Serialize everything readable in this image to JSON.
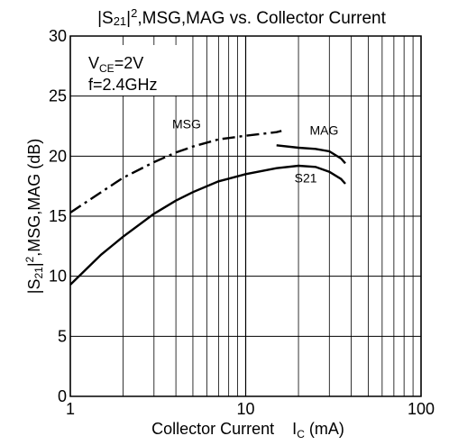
{
  "chart_data": {
    "type": "line",
    "title": [
      "|S",
      "21",
      "|",
      "2",
      ",MSG,MAG vs. Collector Current"
    ],
    "x_label": [
      "Collector Current",
      "I",
      "C",
      " (mA)"
    ],
    "y_label": [
      "|S",
      "21",
      "|",
      "2",
      ",MSG,MAG (dB)"
    ],
    "annotations": [
      [
        "V",
        "CE",
        "=2V"
      ],
      [
        "f=2.4GHz"
      ]
    ],
    "log_x": true,
    "grid": true,
    "xlim": [
      1,
      100
    ],
    "xticks": [
      1,
      10,
      100
    ],
    "ylim": [
      0,
      30
    ],
    "yticks": [
      0,
      5,
      10,
      15,
      20,
      25,
      30
    ],
    "series": [
      {
        "name": "S21",
        "color": "#000000",
        "dash": "solid",
        "x": [
          1,
          1.5,
          2,
          3,
          4,
          5,
          7,
          10,
          15,
          20,
          25,
          30,
          35,
          37
        ],
        "values": [
          9.3,
          11.8,
          13.3,
          15.2,
          16.3,
          17.0,
          17.9,
          18.5,
          19.0,
          19.2,
          19.1,
          18.7,
          18.1,
          17.7
        ]
      },
      {
        "name": "MSG",
        "color": "#000000",
        "dash": "dashdot",
        "x": [
          1,
          1.5,
          2,
          3,
          4,
          5,
          7,
          10,
          15,
          16
        ],
        "values": [
          15.3,
          17.0,
          18.2,
          19.5,
          20.3,
          20.8,
          21.4,
          21.7,
          22.0,
          22.1
        ]
      },
      {
        "name": "MAG",
        "color": "#000000",
        "dash": "solid",
        "x": [
          15,
          20,
          25,
          30,
          35,
          37
        ],
        "values": [
          20.9,
          20.7,
          20.6,
          20.4,
          19.8,
          19.4
        ]
      }
    ]
  }
}
